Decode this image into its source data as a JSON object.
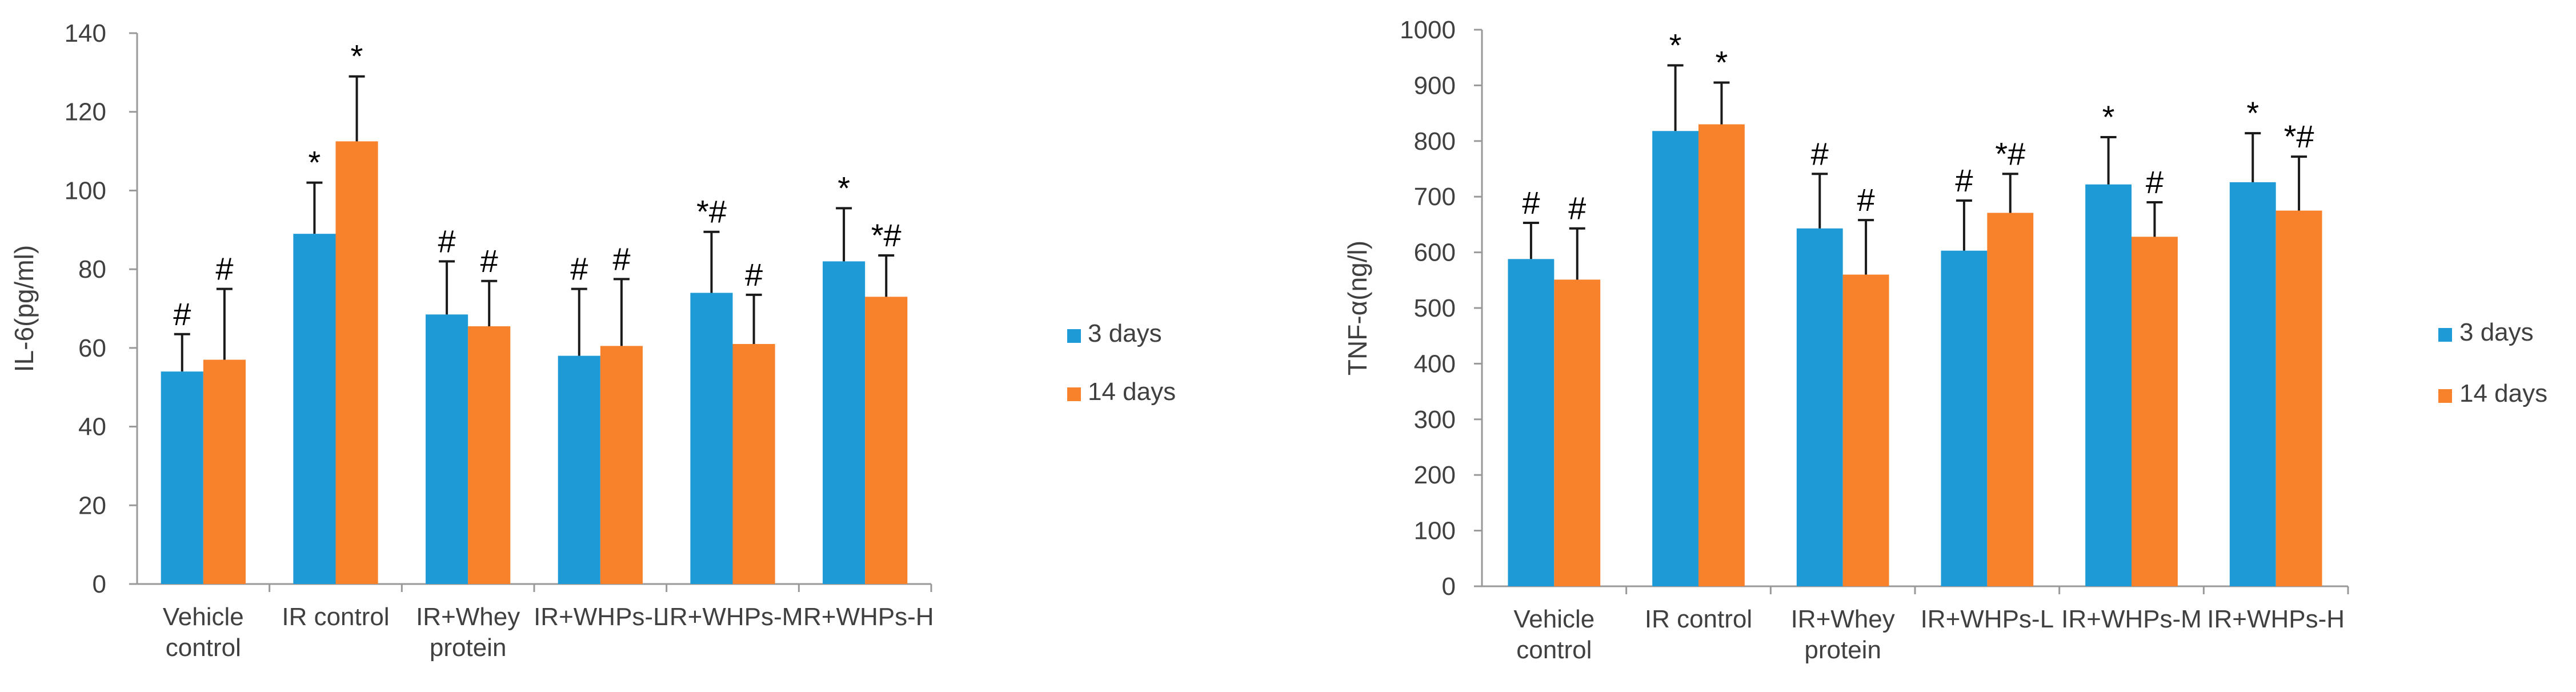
{
  "colors": {
    "series_3": "#1E9BD7",
    "series_14": "#F7822B"
  },
  "chart_data": [
    {
      "type": "bar",
      "title": "",
      "xlabel": "",
      "ylabel": "IL-6(pg/ml)",
      "ylim": [
        0,
        140
      ],
      "yticks": [
        0,
        20,
        40,
        60,
        80,
        100,
        120,
        140
      ],
      "ytick_labels": [
        "0",
        "20",
        "40",
        "60",
        "80",
        "100",
        "120",
        "140"
      ],
      "categories": [
        [
          "Vehicle",
          "control"
        ],
        [
          "IR control"
        ],
        [
          "IR+Whey",
          "protein"
        ],
        [
          "IR+WHPs-L"
        ],
        [
          "IR+WHPs-M"
        ],
        [
          "IR+WHPs-H"
        ]
      ],
      "series": [
        {
          "name": "3 days",
          "color": "#1E9BD7",
          "values": [
            54,
            89,
            68.5,
            58,
            74,
            82
          ],
          "errors": [
            9.5,
            13,
            13.5,
            17,
            15.5,
            13.5
          ],
          "annotations": [
            "#",
            "*",
            "#",
            "#",
            "*#",
            "*"
          ]
        },
        {
          "name": "14 days",
          "color": "#F7822B",
          "values": [
            57,
            112.5,
            65.5,
            60.5,
            61,
            73
          ],
          "errors": [
            18,
            16.5,
            11.5,
            17,
            12.5,
            10.5
          ],
          "annotations": [
            "#",
            "*",
            "#",
            "#",
            "#",
            "*#"
          ]
        }
      ],
      "legend": {
        "placement": "right",
        "entries": [
          "3 days",
          "14 days"
        ]
      }
    },
    {
      "type": "bar",
      "title": "",
      "xlabel": "",
      "ylabel": "TNF-α(ng/l)",
      "ylim": [
        0,
        1000
      ],
      "yticks": [
        0,
        100,
        200,
        300,
        400,
        500,
        600,
        700,
        800,
        900,
        1000
      ],
      "ytick_labels": [
        "0",
        "100",
        "200",
        "300",
        "400",
        "500",
        "600",
        "700",
        "800",
        "900",
        "1000"
      ],
      "categories": [
        [
          "Vehicle",
          "control"
        ],
        [
          "IR control"
        ],
        [
          "IR+Whey",
          "protein"
        ],
        [
          "IR+WHPs-L"
        ],
        [
          "IR+WHPs-M"
        ],
        [
          "IR+WHPs-H"
        ]
      ],
      "series": [
        {
          "name": "3 days",
          "color": "#1E9BD7",
          "values": [
            588,
            818,
            643,
            603,
            722,
            726
          ],
          "errors": [
            65,
            118,
            98,
            90,
            85,
            88
          ],
          "annotations": [
            "#",
            "*",
            "#",
            "#",
            "*",
            "*"
          ]
        },
        {
          "name": "14 days",
          "color": "#F7822B",
          "values": [
            551,
            830,
            560,
            671,
            628,
            675
          ],
          "errors": [
            92,
            75,
            98,
            70,
            62,
            97
          ],
          "annotations": [
            "#",
            "*",
            "#",
            "*#",
            "#",
            "*#"
          ]
        }
      ],
      "legend": {
        "placement": "right",
        "entries": [
          "3 days",
          "14 days"
        ]
      }
    }
  ]
}
